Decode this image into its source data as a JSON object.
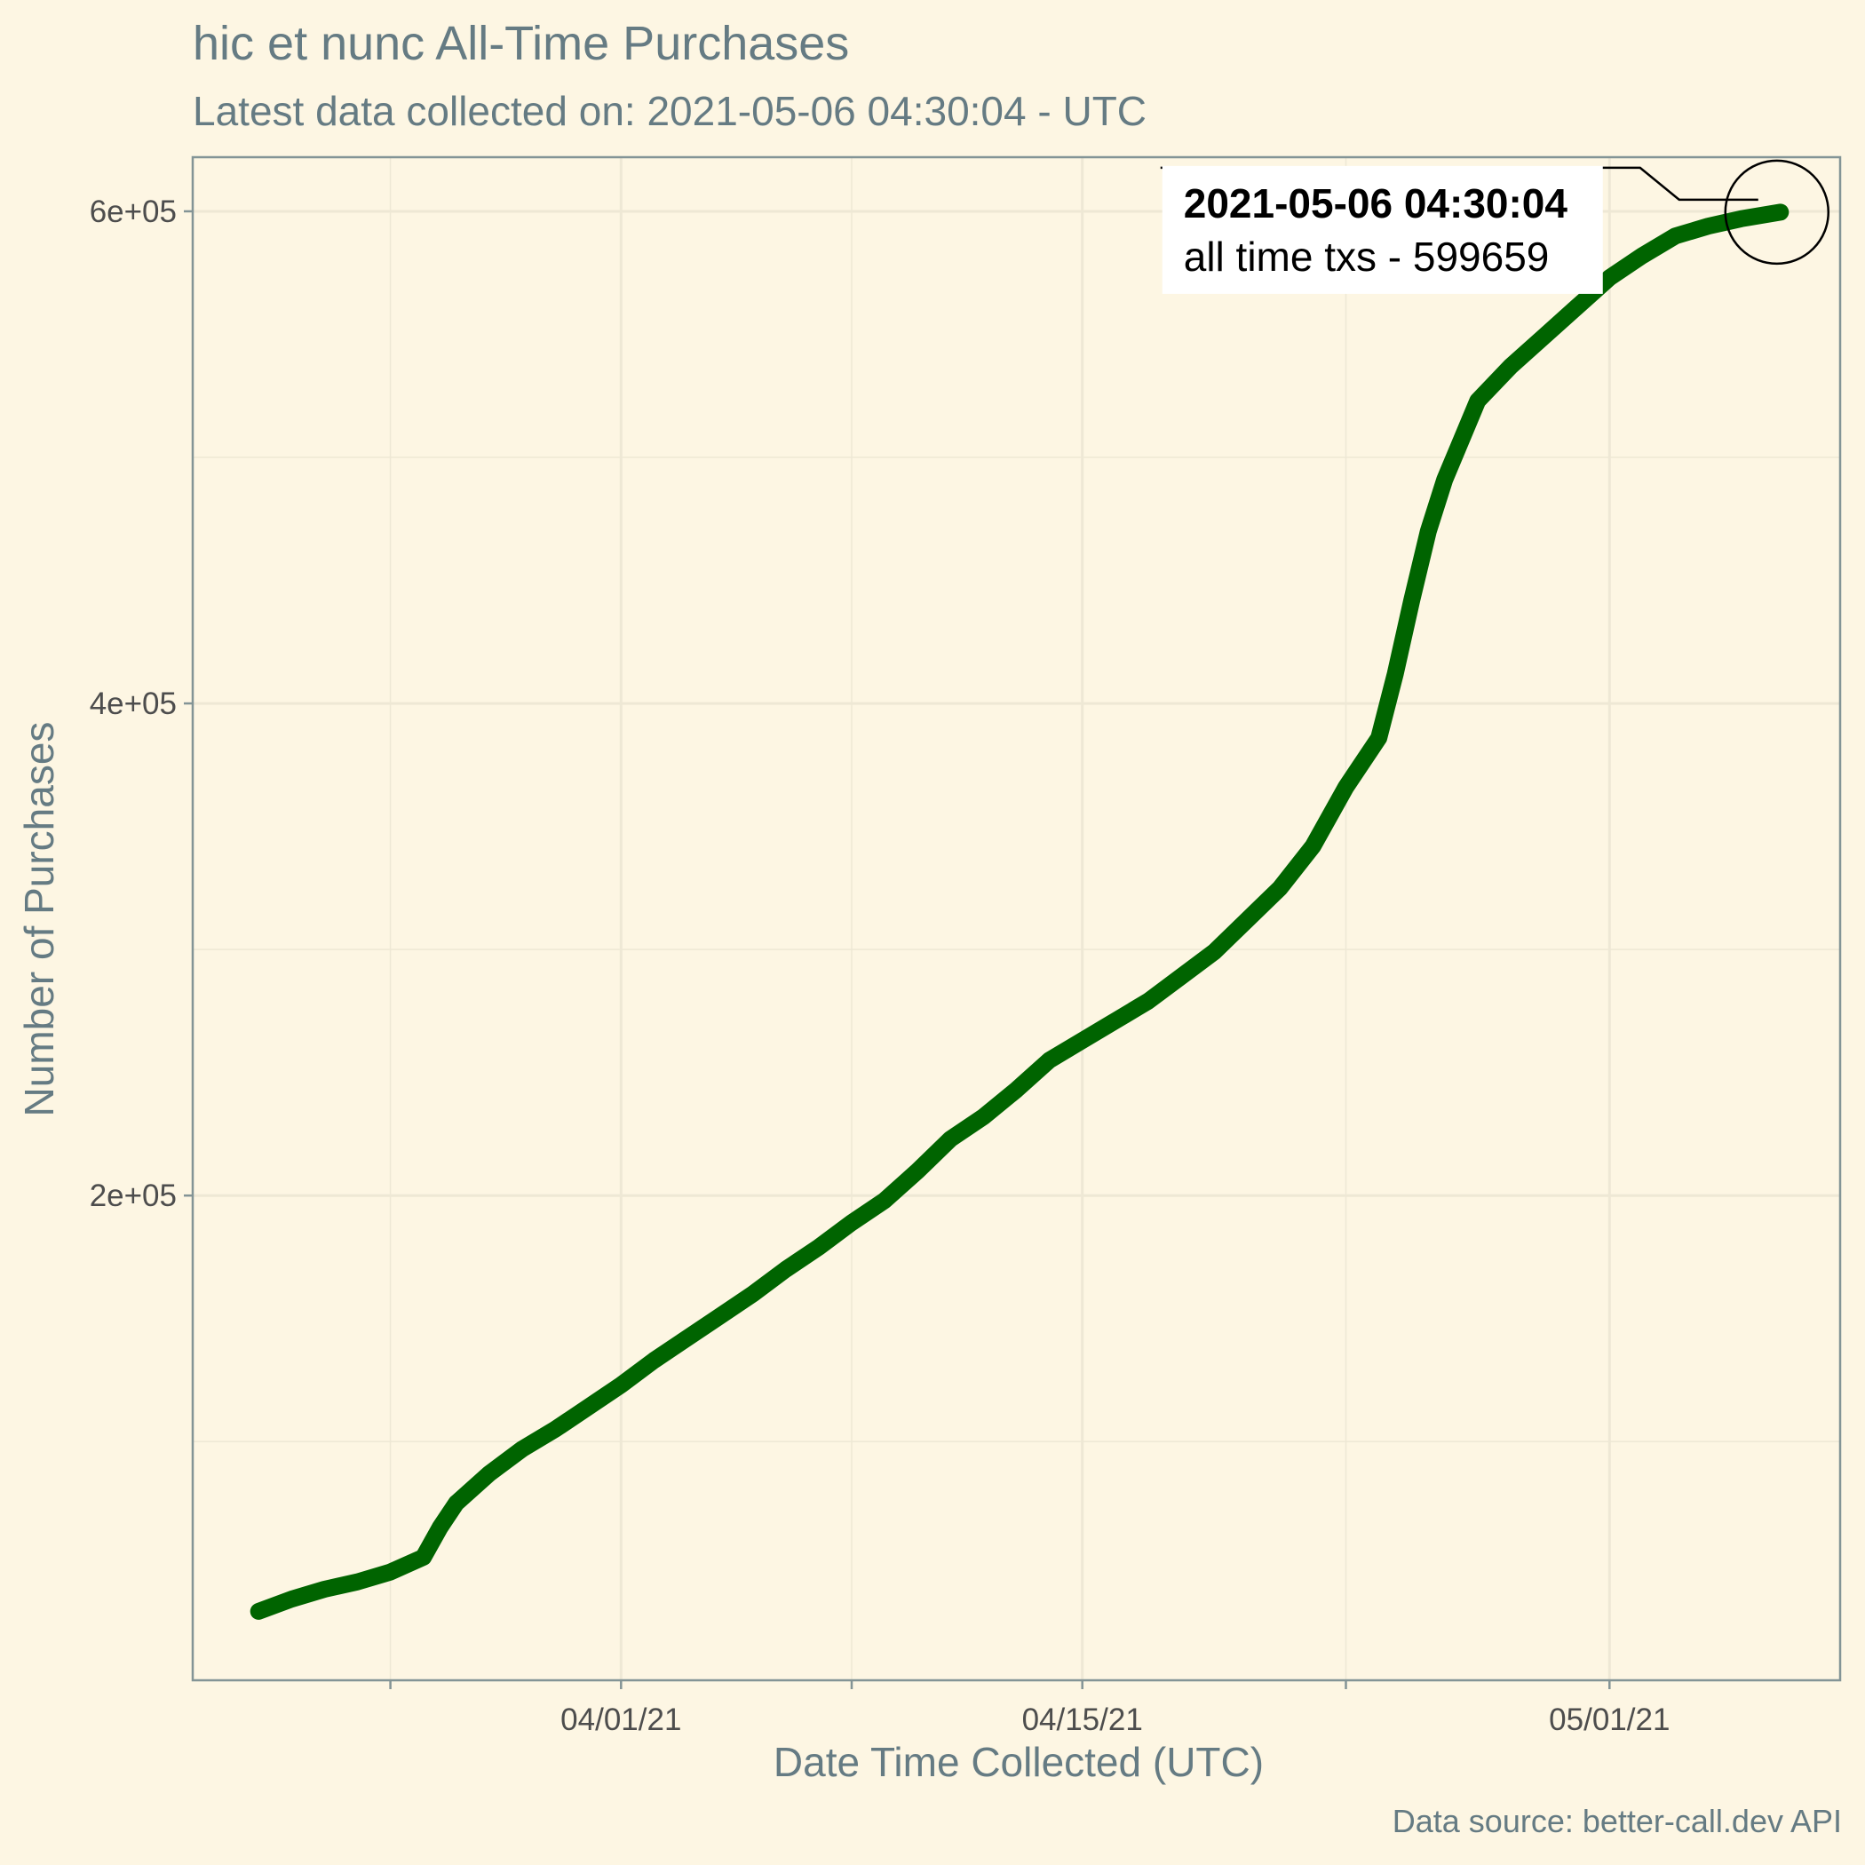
{
  "chart_data": {
    "type": "line",
    "title": "hic et nunc All-Time Purchases",
    "subtitle": "Latest data collected on: 2021-05-06 04:30:04  - UTC",
    "xlabel": "Date Time Collected (UTC)",
    "ylabel": "Number of Purchases",
    "caption": "Data source: better-call.dev API",
    "x_type": "datetime",
    "xlim": [
      "2021-03-19",
      "2021-05-08"
    ],
    "ylim": [
      3000,
      622000
    ],
    "x_ticks": [
      {
        "value": "2021-04-01",
        "label": "04/01/21"
      },
      {
        "value": "2021-04-15",
        "label": "04/15/21"
      },
      {
        "value": "2021-05-01",
        "label": "05/01/21"
      }
    ],
    "y_ticks": [
      {
        "value": 200000,
        "label": "2e+05"
      },
      {
        "value": 400000,
        "label": "4e+05"
      },
      {
        "value": 600000,
        "label": "6e+05"
      }
    ],
    "grid": true,
    "line_color": "#006400",
    "series": [
      {
        "x": [
          "2021-03-21",
          "2021-03-22",
          "2021-03-23",
          "2021-03-24",
          "2021-03-25",
          "2021-03-26",
          "2021-03-26T12:00",
          "2021-03-27",
          "2021-03-28",
          "2021-03-29",
          "2021-03-30",
          "2021-03-31",
          "2021-04-01",
          "2021-04-02",
          "2021-04-03",
          "2021-04-04",
          "2021-04-05",
          "2021-04-06",
          "2021-04-07",
          "2021-04-08",
          "2021-04-09",
          "2021-04-10",
          "2021-04-11",
          "2021-04-12",
          "2021-04-13",
          "2021-04-14",
          "2021-04-15",
          "2021-04-16",
          "2021-04-17",
          "2021-04-18",
          "2021-04-19",
          "2021-04-20",
          "2021-04-21",
          "2021-04-22",
          "2021-04-23",
          "2021-04-24",
          "2021-04-24T12:00",
          "2021-04-25",
          "2021-04-25T12:00",
          "2021-04-26",
          "2021-04-26T12:00",
          "2021-04-27",
          "2021-04-28",
          "2021-04-29",
          "2021-04-30",
          "2021-05-01",
          "2021-05-02",
          "2021-05-03",
          "2021-05-04",
          "2021-05-05",
          "2021-05-06T04:30:04"
        ],
        "y": [
          31000,
          36000,
          40000,
          43000,
          47000,
          53000,
          65000,
          75000,
          87000,
          97000,
          105000,
          114000,
          123000,
          133000,
          142000,
          151000,
          160000,
          170000,
          179000,
          189000,
          198000,
          210000,
          223000,
          232000,
          243000,
          255000,
          263000,
          271000,
          279000,
          289000,
          299000,
          312000,
          325000,
          342000,
          366000,
          386000,
          412000,
          442000,
          470000,
          491000,
          507000,
          523000,
          537000,
          549000,
          561000,
          573000,
          582000,
          590000,
          594000,
          597000,
          599659
        ]
      }
    ],
    "annotation": {
      "x": "2021-05-06T04:30:04",
      "y": 599659,
      "label_bold": "2021-05-06 04:30:04",
      "label": "all time txs - 599659"
    }
  }
}
